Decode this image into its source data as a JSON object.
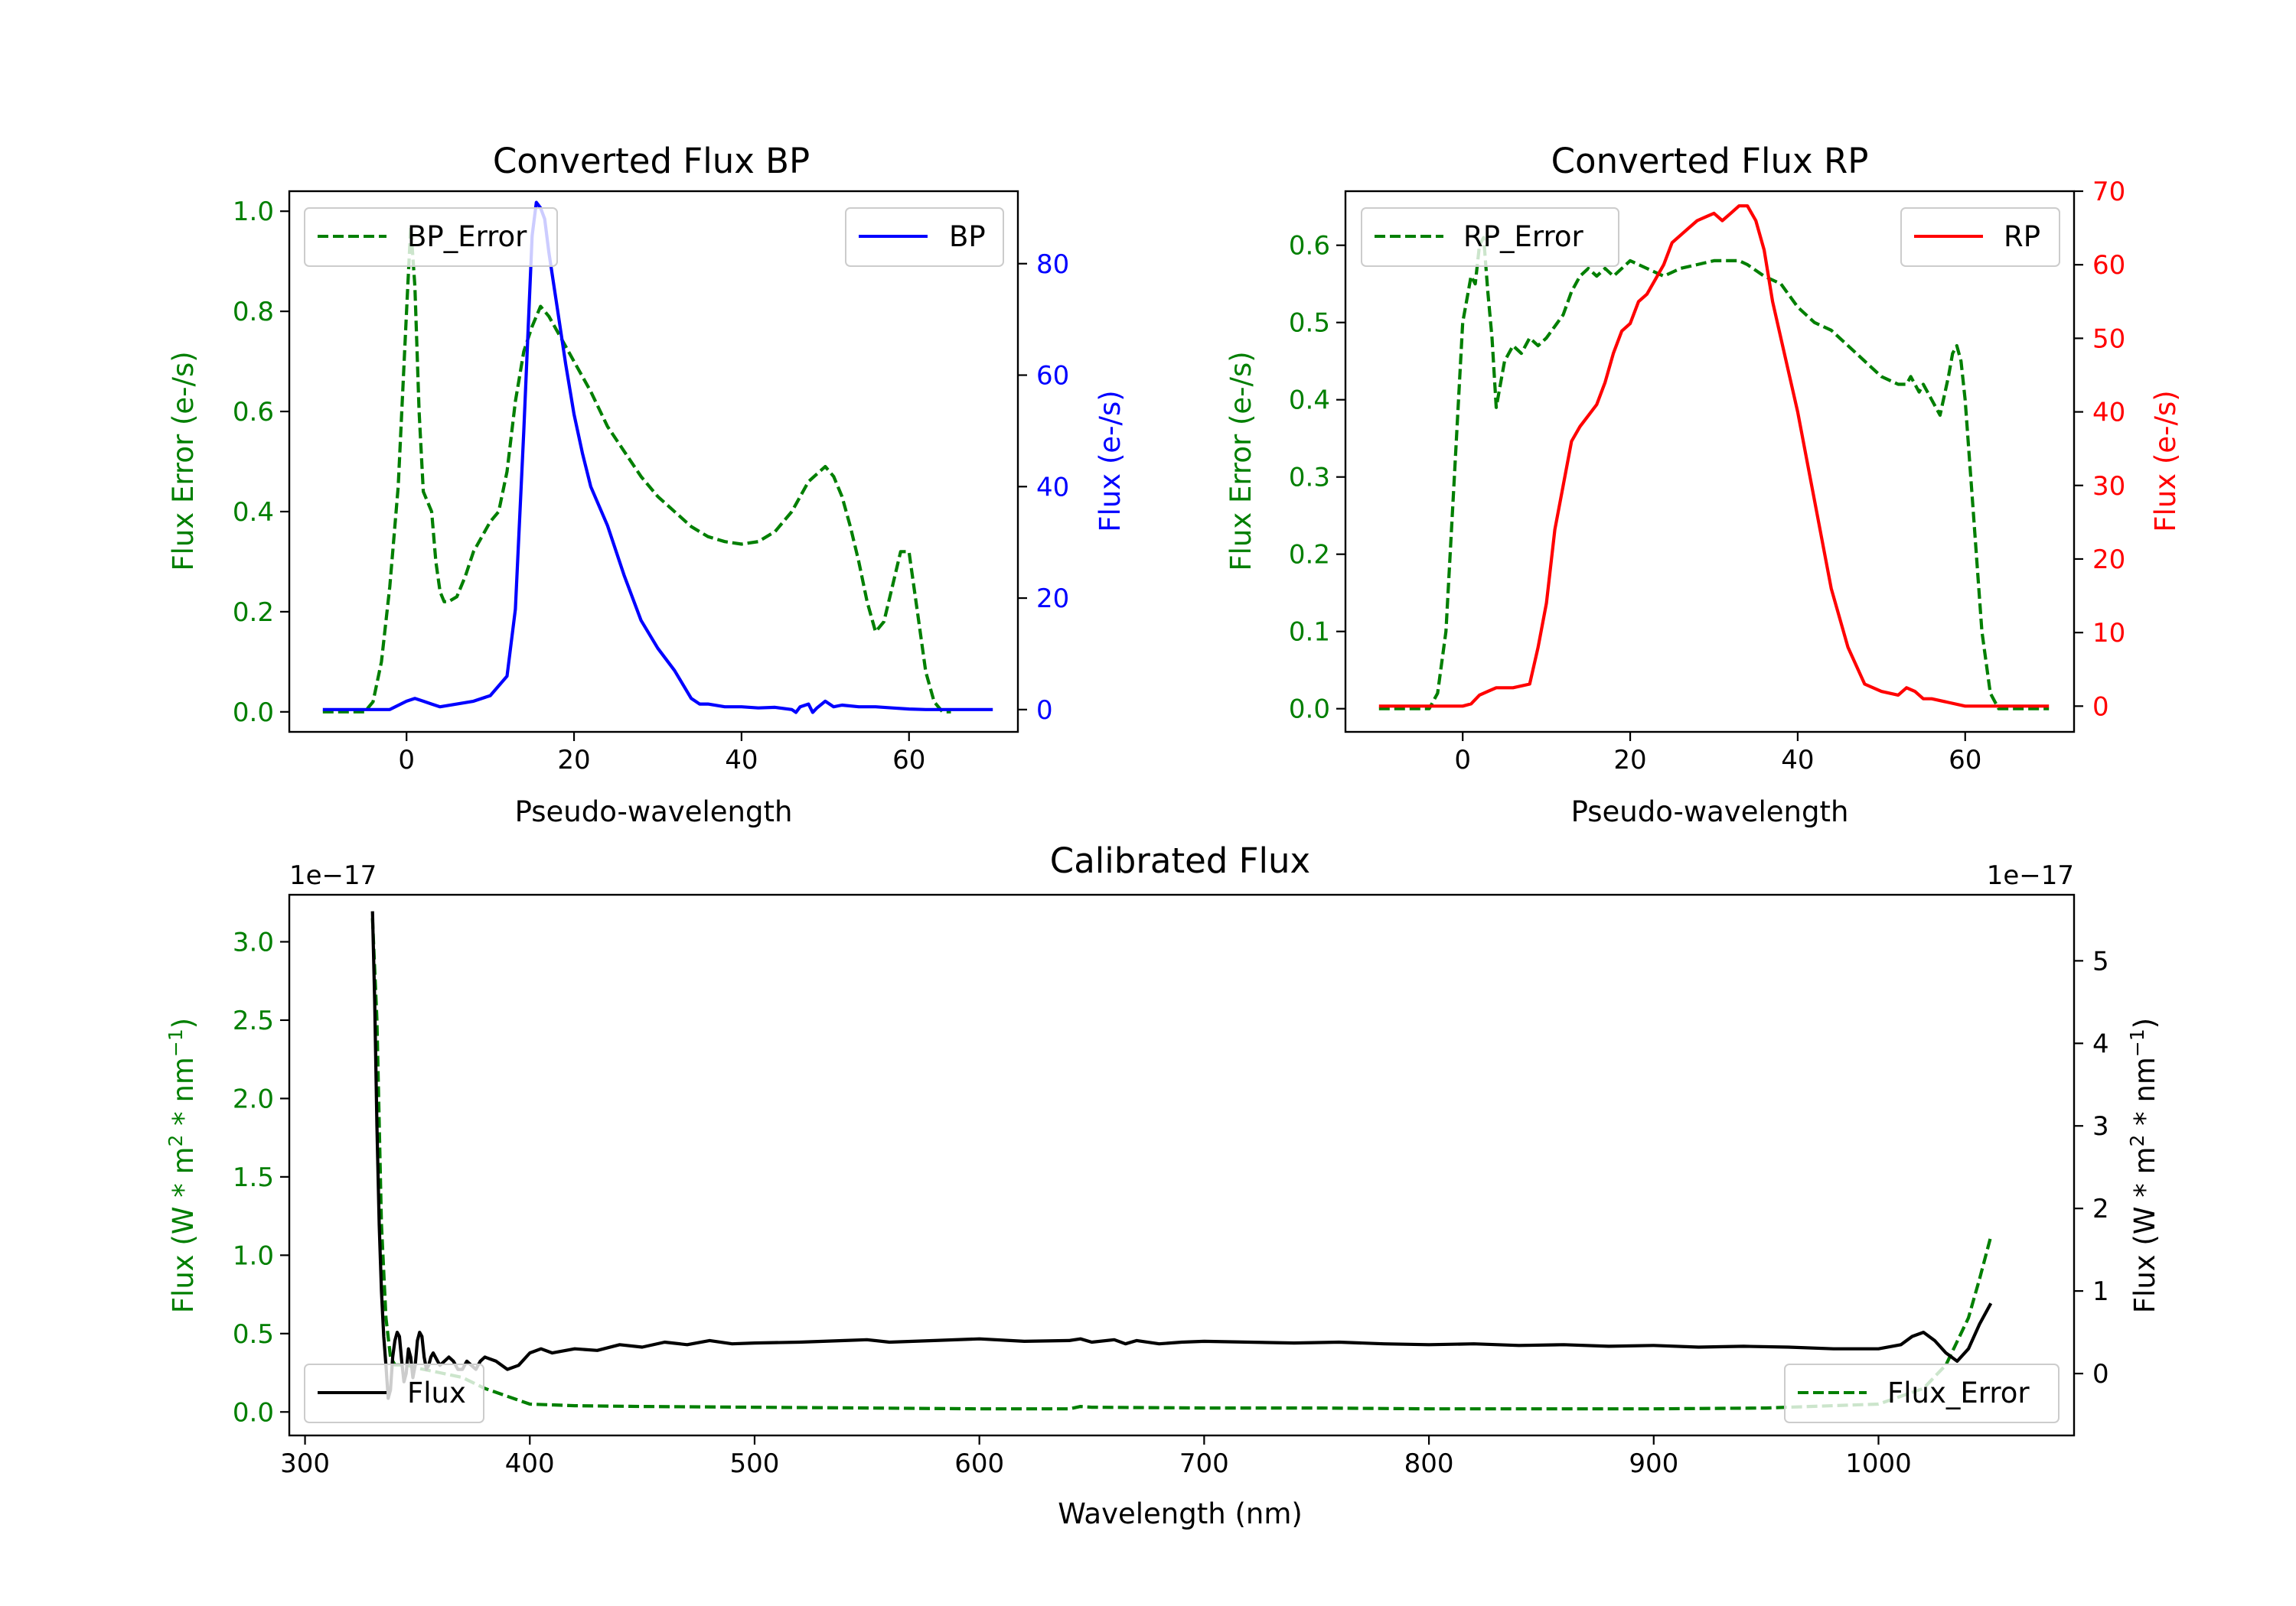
{
  "colors": {
    "bp": "#0000ff",
    "rp": "#ff0000",
    "error": "#007f00",
    "flux": "#000000"
  },
  "chart_data": [
    {
      "type": "line",
      "title": "Converted Flux BP",
      "xlabel": "Pseudo-wavelength",
      "ylabel_left": "Flux Error (e-/s)",
      "ylabel_right": "Flux (e-/s)",
      "xlim": [
        -14,
        73
      ],
      "ylim_left": [
        -0.04,
        1.04
      ],
      "ylim_right": [
        -4,
        93
      ],
      "xticks": [
        0,
        20,
        40,
        60
      ],
      "yticks_left": [
        "0.0",
        "0.2",
        "0.4",
        "0.6",
        "0.8",
        "1.0"
      ],
      "yticks_right": [
        0,
        20,
        40,
        60,
        80
      ],
      "series": [
        {
          "name": "BP_Error",
          "axis": "left",
          "style": "dashed",
          "color": "#007f00",
          "x": [
            -10,
            -5,
            -4,
            -3,
            -2,
            -1,
            0,
            0.5,
            1,
            1.5,
            2,
            3,
            3.5,
            4,
            4.5,
            5,
            6,
            7,
            8,
            9,
            10,
            11,
            12,
            13,
            14,
            15,
            16,
            17,
            18,
            19,
            20,
            22,
            24,
            26,
            28,
            30,
            32,
            34,
            36,
            38,
            40,
            42,
            44,
            46,
            48,
            50,
            51,
            52,
            53,
            54,
            55,
            56,
            57,
            58,
            59,
            60,
            61,
            62,
            63,
            64,
            65
          ],
          "y": [
            0,
            0,
            0.02,
            0.1,
            0.25,
            0.45,
            0.8,
            0.97,
            0.85,
            0.6,
            0.44,
            0.4,
            0.3,
            0.24,
            0.22,
            0.22,
            0.23,
            0.27,
            0.32,
            0.35,
            0.38,
            0.4,
            0.48,
            0.62,
            0.72,
            0.77,
            0.81,
            0.79,
            0.76,
            0.73,
            0.7,
            0.64,
            0.57,
            0.52,
            0.47,
            0.43,
            0.4,
            0.37,
            0.35,
            0.34,
            0.335,
            0.34,
            0.36,
            0.4,
            0.46,
            0.49,
            0.47,
            0.43,
            0.37,
            0.3,
            0.22,
            0.16,
            0.18,
            0.25,
            0.32,
            0.32,
            0.2,
            0.08,
            0.02,
            0,
            0
          ]
        },
        {
          "name": "BP",
          "axis": "right",
          "style": "solid",
          "color": "#0000ff",
          "x": [
            -10,
            -2,
            0,
            1,
            2,
            3,
            4,
            6,
            8,
            10,
            12,
            13,
            14,
            15,
            15.5,
            16,
            16.5,
            17,
            18,
            19,
            20,
            21,
            22,
            24,
            26,
            28,
            30,
            32,
            34,
            35,
            36,
            38,
            40,
            42,
            44,
            46,
            46.5,
            47,
            48,
            48.5,
            49,
            50,
            51,
            52,
            54,
            56,
            58,
            60,
            62,
            64,
            66,
            70
          ],
          "y": [
            0,
            0,
            1.5,
            2,
            1.5,
            1,
            0.5,
            1,
            1.5,
            2.5,
            6,
            18,
            50,
            85,
            91,
            90,
            88,
            82,
            72,
            62,
            53,
            46,
            40,
            33,
            24,
            16,
            11,
            7,
            2,
            1,
            1,
            0.5,
            0.5,
            0.3,
            0.4,
            0,
            -0.5,
            0.5,
            1,
            -0.5,
            0.3,
            1.5,
            0.5,
            0.8,
            0.5,
            0.5,
            0.3,
            0.1,
            0,
            0,
            0,
            0
          ]
        }
      ],
      "legend": [
        {
          "label": "BP_Error",
          "position": "upper left"
        },
        {
          "label": "BP",
          "position": "upper right"
        }
      ]
    },
    {
      "type": "line",
      "title": "Converted Flux RP",
      "xlabel": "Pseudo-wavelength",
      "ylabel_left": "Flux Error (e-/s)",
      "ylabel_right": "Flux (e-/s)",
      "xlim": [
        -14,
        73
      ],
      "ylim_left": [
        -0.03,
        0.67
      ],
      "ylim_right": [
        -3.5,
        70
      ],
      "xticks": [
        0,
        20,
        40,
        60
      ],
      "yticks_left": [
        "0.0",
        "0.1",
        "0.2",
        "0.3",
        "0.4",
        "0.5",
        "0.6"
      ],
      "yticks_right": [
        0,
        10,
        20,
        30,
        40,
        50,
        60,
        70
      ],
      "series": [
        {
          "name": "RP_Error",
          "axis": "left",
          "style": "dashed",
          "color": "#007f00",
          "x": [
            -10,
            -4,
            -3,
            -2,
            -1,
            0,
            1,
            1.5,
            2,
            2.5,
            3,
            3.5,
            4,
            5,
            6,
            7,
            8,
            9,
            10,
            12,
            13,
            14,
            15,
            16,
            17,
            18,
            19,
            20,
            22,
            24,
            26,
            28,
            30,
            32,
            33,
            34,
            36,
            38,
            40,
            42,
            44,
            46,
            48,
            50,
            52,
            53,
            53.5,
            54,
            54.5,
            55,
            56,
            57,
            58,
            58.5,
            59,
            59.5,
            60,
            61,
            62,
            63,
            64,
            66,
            70
          ],
          "y": [
            0,
            0,
            0.02,
            0.1,
            0.3,
            0.5,
            0.56,
            0.55,
            0.6,
            0.61,
            0.54,
            0.48,
            0.39,
            0.45,
            0.47,
            0.46,
            0.48,
            0.47,
            0.48,
            0.51,
            0.54,
            0.56,
            0.57,
            0.56,
            0.57,
            0.56,
            0.57,
            0.58,
            0.57,
            0.56,
            0.57,
            0.575,
            0.58,
            0.58,
            0.58,
            0.575,
            0.56,
            0.55,
            0.52,
            0.5,
            0.49,
            0.47,
            0.45,
            0.43,
            0.42,
            0.42,
            0.43,
            0.42,
            0.41,
            0.42,
            0.4,
            0.38,
            0.43,
            0.46,
            0.47,
            0.45,
            0.4,
            0.25,
            0.1,
            0.02,
            0,
            0,
            0
          ]
        },
        {
          "name": "RP",
          "axis": "right",
          "style": "solid",
          "color": "#ff0000",
          "x": [
            -10,
            -2,
            0,
            1,
            2,
            3,
            4,
            6,
            8,
            9,
            10,
            11,
            12,
            13,
            14,
            16,
            17,
            18,
            19,
            20,
            21,
            22,
            23,
            24,
            25,
            26,
            27,
            28,
            29,
            30,
            31,
            32,
            33,
            34,
            35,
            36,
            37,
            38,
            40,
            42,
            44,
            46,
            48,
            50,
            52,
            53,
            54,
            55,
            56,
            58,
            60,
            62,
            66,
            70
          ],
          "y": [
            0,
            0,
            0,
            0.3,
            1.5,
            2,
            2.5,
            2.5,
            3,
            8,
            14,
            24,
            30,
            36,
            38,
            41,
            44,
            48,
            51,
            52,
            55,
            56,
            58,
            60,
            63,
            64,
            65,
            66,
            66.5,
            67,
            66,
            67,
            68,
            68,
            66,
            62,
            55,
            50,
            40,
            28,
            16,
            8,
            3,
            2,
            1.5,
            2.5,
            2,
            1,
            1,
            0.5,
            0,
            0,
            0,
            0
          ]
        }
      ],
      "legend": [
        {
          "label": "RP_Error",
          "position": "upper left"
        },
        {
          "label": "RP",
          "position": "upper right"
        }
      ]
    },
    {
      "type": "line",
      "title": "Calibrated Flux",
      "xlabel": "Wavelength (nm)",
      "ylabel_left": "Flux (W * m² * nm⁻¹)",
      "ylabel_right": "Flux (W * m² * nm⁻¹)",
      "ylabel_left_parts": {
        "a": "Flux (W * m",
        "b": "2",
        "c": " * nm",
        "d": "−1",
        "e": ")"
      },
      "ylabel_right_parts": {
        "a": "Flux (W * m",
        "b": "2",
        "c": " * nm",
        "d": "−1",
        "e": ")"
      },
      "offset_left": "1e−17",
      "offset_right": "1e−17",
      "xlim": [
        293,
        1087
      ],
      "ylim_left": [
        -0.15,
        3.3
      ],
      "ylim_right": [
        -0.75,
        5.8
      ],
      "xticks": [
        300,
        400,
        500,
        600,
        700,
        800,
        900,
        1000
      ],
      "yticks_left": [
        "0.0",
        "0.5",
        "1.0",
        "1.5",
        "2.0",
        "2.5",
        "3.0"
      ],
      "yticks_right": [
        0,
        1,
        2,
        3,
        4,
        5
      ],
      "series": [
        {
          "name": "Flux_Error",
          "axis": "left",
          "style": "dashed",
          "color": "#007f00",
          "x": [
            330,
            332,
            334,
            336,
            338,
            340,
            345,
            350,
            360,
            370,
            380,
            390,
            400,
            420,
            450,
            500,
            550,
            600,
            640,
            645,
            650,
            700,
            750,
            800,
            850,
            900,
            950,
            1000,
            1020,
            1030,
            1040,
            1045,
            1050
          ],
          "y": [
            3.15,
            2.5,
            1.2,
            0.6,
            0.35,
            0.3,
            0.3,
            0.28,
            0.25,
            0.22,
            0.15,
            0.1,
            0.05,
            0.04,
            0.035,
            0.03,
            0.025,
            0.02,
            0.02,
            0.035,
            0.03,
            0.025,
            0.025,
            0.02,
            0.02,
            0.02,
            0.025,
            0.05,
            0.15,
            0.3,
            0.6,
            0.85,
            1.12
          ]
        },
        {
          "name": "Flux",
          "axis": "right",
          "style": "solid",
          "color": "#000000",
          "x": [
            330,
            331,
            332,
            333,
            334,
            335,
            336,
            337,
            338,
            339,
            340,
            341,
            342,
            343,
            344,
            345,
            346,
            347,
            348,
            349,
            350,
            351,
            352,
            353,
            354,
            355,
            356,
            357,
            358,
            359,
            360,
            362,
            364,
            366,
            368,
            370,
            372,
            374,
            376,
            378,
            380,
            385,
            390,
            395,
            400,
            405,
            410,
            420,
            430,
            440,
            450,
            460,
            470,
            480,
            490,
            500,
            520,
            540,
            550,
            560,
            580,
            600,
            620,
            640,
            645,
            650,
            660,
            665,
            670,
            680,
            690,
            700,
            720,
            740,
            760,
            780,
            800,
            820,
            840,
            860,
            880,
            900,
            920,
            940,
            960,
            980,
            1000,
            1010,
            1015,
            1020,
            1025,
            1030,
            1035,
            1040,
            1045,
            1050
          ],
          "y": [
            5.6,
            4.5,
            3.0,
            1.8,
            1.0,
            0.45,
            0.1,
            -0.3,
            -0.2,
            0.2,
            0.4,
            0.5,
            0.45,
            0.15,
            -0.1,
            0.0,
            0.3,
            0.2,
            -0.05,
            0.1,
            0.4,
            0.5,
            0.45,
            0.2,
            0.05,
            0.1,
            0.2,
            0.25,
            0.2,
            0.15,
            0.1,
            0.15,
            0.2,
            0.15,
            0.05,
            0.05,
            0.15,
            0.1,
            0.05,
            0.15,
            0.2,
            0.15,
            0.05,
            0.1,
            0.25,
            0.3,
            0.25,
            0.3,
            0.28,
            0.35,
            0.32,
            0.38,
            0.35,
            0.4,
            0.36,
            0.37,
            0.38,
            0.4,
            0.41,
            0.38,
            0.4,
            0.42,
            0.39,
            0.4,
            0.42,
            0.38,
            0.41,
            0.36,
            0.4,
            0.36,
            0.38,
            0.39,
            0.38,
            0.37,
            0.38,
            0.36,
            0.35,
            0.36,
            0.34,
            0.35,
            0.33,
            0.34,
            0.32,
            0.33,
            0.32,
            0.3,
            0.3,
            0.35,
            0.45,
            0.5,
            0.4,
            0.25,
            0.15,
            0.3,
            0.6,
            0.85
          ]
        }
      ],
      "legend": [
        {
          "label": "Flux",
          "position": "lower left"
        },
        {
          "label": "Flux_Error",
          "position": "lower right"
        }
      ]
    }
  ]
}
